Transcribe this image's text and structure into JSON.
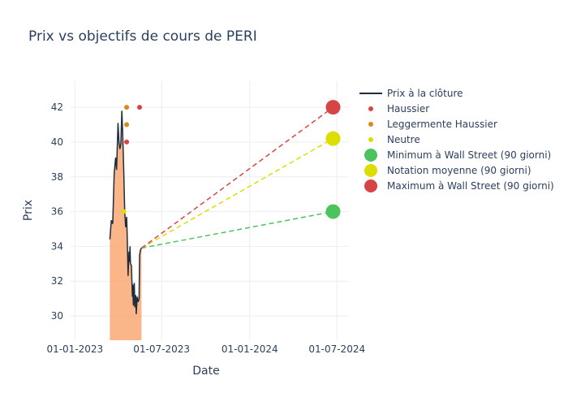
{
  "chart_data": {
    "type": "line",
    "title": "Prix vs objectifs de cours de PERI",
    "xlabel": "Date",
    "ylabel": "Prix",
    "x_ticks": [
      "01-01-2023",
      "01-07-2023",
      "01-01-2024",
      "01-07-2024"
    ],
    "y_ticks": [
      "30",
      "32",
      "34",
      "36",
      "38",
      "40",
      "42"
    ],
    "xlim": [
      "2022-12-23",
      "2024-07-26"
    ],
    "ylim": [
      28.6,
      43.5
    ],
    "grid": true,
    "legend_position": "right",
    "colors": {
      "price_line": "#1f2d3d",
      "price_fill": "#f9a26c",
      "haussier": "#d64545",
      "leggermente_haussier": "#d68c1a",
      "neutre": "#dddd00",
      "minimum": "#4cc35c",
      "moyenne": "#dddd00",
      "maximum": "#d64545"
    },
    "series": [
      {
        "name": "Prix à la clôture",
        "kind": "line",
        "points": [
          [
            "2023-03-15",
            34.4
          ],
          [
            "2023-03-18",
            35.5
          ],
          [
            "2023-03-21",
            35.3
          ],
          [
            "2023-03-24",
            38.2
          ],
          [
            "2023-03-27",
            39.1
          ],
          [
            "2023-03-29",
            38.4
          ],
          [
            "2023-04-01",
            41.1
          ],
          [
            "2023-04-03",
            40.0
          ],
          [
            "2023-04-05",
            39.6
          ],
          [
            "2023-04-07",
            39.9
          ],
          [
            "2023-04-09",
            41.8
          ],
          [
            "2023-04-11",
            40.3
          ],
          [
            "2023-04-13",
            38.3
          ],
          [
            "2023-04-15",
            36.0
          ],
          [
            "2023-04-17",
            35.1
          ],
          [
            "2023-04-19",
            35.7
          ],
          [
            "2023-04-20",
            34.8
          ],
          [
            "2023-04-22",
            32.3
          ],
          [
            "2023-04-24",
            33.7
          ],
          [
            "2023-04-25",
            33.1
          ],
          [
            "2023-04-26",
            34.0
          ],
          [
            "2023-04-27",
            33.0
          ],
          [
            "2023-04-29",
            32.9
          ],
          [
            "2023-05-01",
            31.1
          ],
          [
            "2023-05-02",
            31.8
          ],
          [
            "2023-05-03",
            30.6
          ],
          [
            "2023-05-05",
            31.9
          ],
          [
            "2023-05-06",
            30.5
          ],
          [
            "2023-05-08",
            31.2
          ],
          [
            "2023-05-09",
            30.1
          ],
          [
            "2023-05-11",
            31.1
          ],
          [
            "2023-05-13",
            30.8
          ],
          [
            "2023-05-15",
            31.0
          ],
          [
            "2023-05-16",
            33.5
          ],
          [
            "2023-05-18",
            33.8
          ],
          [
            "2023-05-20",
            33.9
          ]
        ]
      },
      {
        "name": "Haussier",
        "kind": "markers",
        "points": [
          [
            "2023-04-19",
            40.0
          ],
          [
            "2023-05-16",
            42.0
          ]
        ]
      },
      {
        "name": "Leggermente Haussier",
        "kind": "markers",
        "points": [
          [
            "2023-04-19",
            42.0
          ],
          [
            "2023-04-19",
            41.0
          ]
        ]
      },
      {
        "name": "Neutre",
        "kind": "markers",
        "points": [
          [
            "2023-04-13",
            36.0
          ]
        ]
      },
      {
        "name": "Minimum à Wall Street (90 giorni)",
        "kind": "target",
        "from": [
          "2023-05-20",
          33.9
        ],
        "to": [
          "2024-06-23",
          36.0
        ]
      },
      {
        "name": "Notation moyenne (90 giorni)",
        "kind": "target",
        "from": [
          "2023-05-20",
          33.9
        ],
        "to": [
          "2024-06-23",
          40.2
        ]
      },
      {
        "name": "Maximum à Wall Street (90 giorni)",
        "kind": "target",
        "from": [
          "2023-05-20",
          33.9
        ],
        "to": [
          "2024-06-23",
          42.0
        ]
      }
    ]
  }
}
